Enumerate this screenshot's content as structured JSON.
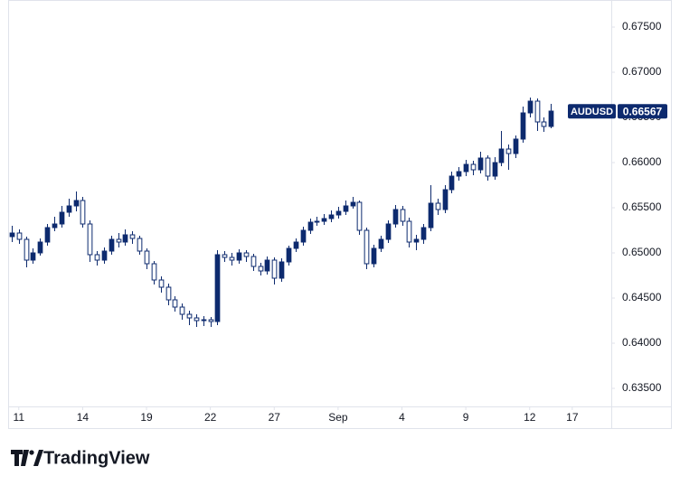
{
  "chart_data": {
    "type": "candlestick",
    "symbol": "AUDUSD",
    "open": [
      0.6518,
      0.6522,
      0.6515,
      0.6492,
      0.65,
      0.6512,
      0.6528,
      0.6532,
      0.6545,
      0.6552,
      0.6558,
      0.6532,
      0.6498,
      0.6492,
      0.6502,
      0.6515,
      0.6512,
      0.652,
      0.6516,
      0.6502,
      0.6488,
      0.647,
      0.6462,
      0.6448,
      0.644,
      0.6432,
      0.6428,
      0.6425,
      0.6426,
      0.6424,
      0.6498,
      0.6495,
      0.6492,
      0.65,
      0.6496,
      0.6485,
      0.648,
      0.6492,
      0.6472,
      0.649,
      0.6505,
      0.6512,
      0.6525,
      0.6534,
      0.6535,
      0.6538,
      0.6542,
      0.6546,
      0.6552,
      0.6556,
      0.6525,
      0.6488,
      0.6505,
      0.6515,
      0.6532,
      0.6548,
      0.6535,
      0.6512,
      0.6515,
      0.6528,
      0.6555,
      0.6548,
      0.657,
      0.6585,
      0.659,
      0.6598,
      0.6592,
      0.6605,
      0.6585,
      0.66,
      0.6615,
      0.661,
      0.6626,
      0.6655,
      0.6668,
      0.6645,
      0.664
    ],
    "high": [
      0.653,
      0.6526,
      0.6518,
      0.6505,
      0.6516,
      0.6532,
      0.654,
      0.6552,
      0.656,
      0.6568,
      0.6562,
      0.6536,
      0.6502,
      0.6506,
      0.6519,
      0.6522,
      0.6526,
      0.6524,
      0.6519,
      0.6505,
      0.6491,
      0.6474,
      0.6466,
      0.6452,
      0.6444,
      0.6436,
      0.6432,
      0.643,
      0.6429,
      0.6503,
      0.6502,
      0.65,
      0.6504,
      0.6503,
      0.6499,
      0.6489,
      0.6496,
      0.6495,
      0.6494,
      0.6508,
      0.6516,
      0.6529,
      0.6538,
      0.654,
      0.6543,
      0.6547,
      0.6551,
      0.6558,
      0.6562,
      0.6558,
      0.6528,
      0.6509,
      0.6519,
      0.6536,
      0.6553,
      0.6552,
      0.6539,
      0.652,
      0.6532,
      0.6575,
      0.656,
      0.6575,
      0.659,
      0.6595,
      0.6603,
      0.6602,
      0.6612,
      0.6608,
      0.6606,
      0.6635,
      0.662,
      0.663,
      0.6662,
      0.6672,
      0.6671,
      0.665,
      0.6665
    ],
    "low": [
      0.6512,
      0.651,
      0.6484,
      0.6488,
      0.6497,
      0.6508,
      0.6524,
      0.6528,
      0.654,
      0.6546,
      0.6528,
      0.649,
      0.6486,
      0.6488,
      0.6498,
      0.6506,
      0.6508,
      0.651,
      0.6498,
      0.6482,
      0.6465,
      0.6456,
      0.6442,
      0.6435,
      0.6426,
      0.642,
      0.6418,
      0.6419,
      0.6418,
      0.642,
      0.649,
      0.6486,
      0.6488,
      0.649,
      0.648,
      0.6475,
      0.6476,
      0.6465,
      0.6468,
      0.6486,
      0.6501,
      0.6508,
      0.6521,
      0.653,
      0.6531,
      0.6534,
      0.6538,
      0.6542,
      0.6549,
      0.652,
      0.6482,
      0.6484,
      0.6501,
      0.6511,
      0.6528,
      0.653,
      0.6506,
      0.6503,
      0.651,
      0.6524,
      0.6542,
      0.6544,
      0.6566,
      0.658,
      0.6585,
      0.6586,
      0.6588,
      0.658,
      0.6581,
      0.6596,
      0.6592,
      0.6605,
      0.6622,
      0.665,
      0.6635,
      0.6634,
      0.6638
    ],
    "close": [
      0.6522,
      0.6515,
      0.6492,
      0.65,
      0.6512,
      0.6528,
      0.6532,
      0.6545,
      0.6552,
      0.6558,
      0.6532,
      0.6498,
      0.6492,
      0.6502,
      0.6515,
      0.6512,
      0.652,
      0.6516,
      0.6502,
      0.6488,
      0.647,
      0.6462,
      0.6448,
      0.644,
      0.6432,
      0.6428,
      0.6425,
      0.6426,
      0.6424,
      0.6498,
      0.6495,
      0.6492,
      0.65,
      0.6496,
      0.6485,
      0.648,
      0.6492,
      0.6472,
      0.649,
      0.6505,
      0.6512,
      0.6525,
      0.6534,
      0.6535,
      0.6538,
      0.6542,
      0.6546,
      0.6552,
      0.6556,
      0.6525,
      0.6488,
      0.6505,
      0.6515,
      0.6532,
      0.6548,
      0.6535,
      0.6512,
      0.6515,
      0.6528,
      0.6555,
      0.6548,
      0.657,
      0.6585,
      0.659,
      0.6598,
      0.6592,
      0.6605,
      0.6585,
      0.66,
      0.6615,
      0.661,
      0.6626,
      0.6655,
      0.6668,
      0.6645,
      0.664,
      0.6657
    ],
    "xticks": [
      {
        "value": 1,
        "label": "11"
      },
      {
        "value": 10,
        "label": "14"
      },
      {
        "value": 19,
        "label": "19"
      },
      {
        "value": 28,
        "label": "22"
      },
      {
        "value": 37,
        "label": "27"
      },
      {
        "value": 46,
        "label": "Sep"
      },
      {
        "value": 55,
        "label": "4"
      },
      {
        "value": 64,
        "label": "9"
      },
      {
        "value": 73,
        "label": "12"
      },
      {
        "value": 79,
        "label": "17"
      }
    ],
    "xlim": [
      -0.5,
      84.5
    ],
    "ylim": [
      0.633,
      0.678
    ],
    "yticks": [
      {
        "value": 0.635,
        "label": "0.63500"
      },
      {
        "value": 0.64,
        "label": "0.64000"
      },
      {
        "value": 0.645,
        "label": "0.64500"
      },
      {
        "value": 0.65,
        "label": "0.65000"
      },
      {
        "value": 0.655,
        "label": "0.65500"
      },
      {
        "value": 0.66,
        "label": "0.66000"
      },
      {
        "value": 0.665,
        "label": "0.66500"
      },
      {
        "value": 0.67,
        "label": "0.67000"
      },
      {
        "value": 0.675,
        "label": "0.67500"
      }
    ],
    "last_value": 0.66567,
    "last_value_label": "0.66567",
    "color": "#0d2a6e"
  },
  "branding": "TradingView"
}
